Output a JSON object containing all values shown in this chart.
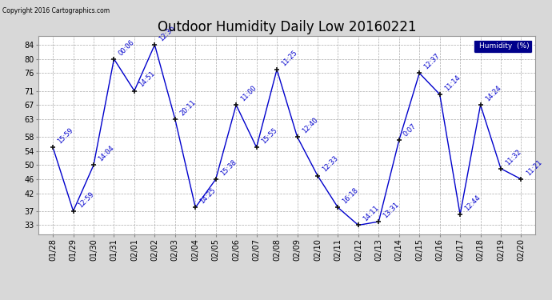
{
  "title": "Outdoor Humidity Daily Low 20160221",
  "copyright": "Copyright 2016 Cartographics.com",
  "legend_label": "Humidity  (%)",
  "x_labels": [
    "01/28",
    "01/29",
    "01/30",
    "01/31",
    "02/01",
    "02/02",
    "02/03",
    "02/04",
    "02/05",
    "02/06",
    "02/07",
    "02/08",
    "02/09",
    "02/10",
    "02/11",
    "02/12",
    "02/13",
    "02/14",
    "02/15",
    "02/16",
    "02/17",
    "02/18",
    "02/19",
    "02/20"
  ],
  "y_values": [
    55,
    37,
    50,
    80,
    71,
    84,
    63,
    38,
    46,
    67,
    55,
    77,
    58,
    47,
    38,
    33,
    34,
    57,
    76,
    70,
    36,
    67,
    49,
    46
  ],
  "point_labels": [
    "15:59",
    "12:59",
    "14:04",
    "00:06",
    "14:51",
    "12:36",
    "20:11",
    "14:25",
    "15:38",
    "11:00",
    "15:55",
    "11:25",
    "12:40",
    "12:33",
    "16:18",
    "14:11",
    "13:31",
    "0:07",
    "12:37",
    "11:14",
    "12:44",
    "14:24",
    "11:32",
    "11:21"
  ],
  "ylim": [
    30.5,
    86.5
  ],
  "yticks": [
    33,
    37,
    42,
    46,
    50,
    54,
    58,
    63,
    67,
    71,
    76,
    80,
    84
  ],
  "line_color": "#0000cc",
  "marker_color": "#111111",
  "bg_color": "#d8d8d8",
  "plot_bg_color": "#ffffff",
  "grid_color": "#aaaaaa",
  "title_fontsize": 12,
  "tick_fontsize": 7,
  "annot_fontsize": 6,
  "legend_bg": "#00008b",
  "legend_fg": "#ffffff"
}
